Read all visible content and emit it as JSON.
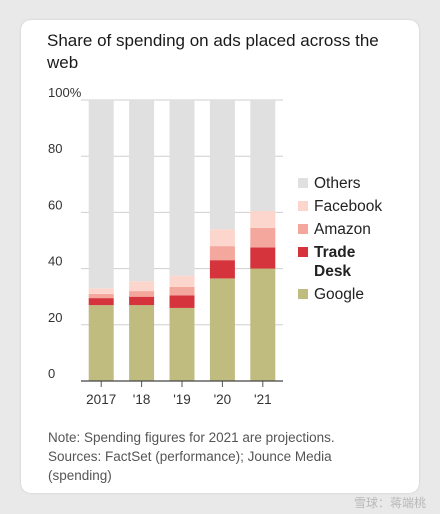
{
  "chart_data": {
    "type": "bar",
    "stacked": true,
    "title": "Share of spending on ads placed across the web",
    "categories": [
      "2017",
      "'18",
      "'19",
      "'20",
      "'21"
    ],
    "y_ticks": [
      "0",
      "20",
      "40",
      "60",
      "80",
      "100%"
    ],
    "ylim": [
      0,
      100
    ],
    "grid": true,
    "legend_position": "right",
    "series": [
      {
        "name": "Google",
        "color": "#c0bc80",
        "values": [
          27,
          27,
          26,
          36.5,
          40
        ]
      },
      {
        "name": "Trade Desk",
        "color": "#d6343c",
        "values": [
          2.5,
          3,
          4.5,
          6.5,
          7.5
        ]
      },
      {
        "name": "Amazon",
        "color": "#f4a79d",
        "values": [
          1.5,
          2,
          3,
          5,
          7
        ]
      },
      {
        "name": "Facebook",
        "color": "#fcd6cc",
        "values": [
          2,
          3.5,
          4,
          6,
          6
        ]
      },
      {
        "name": "Others",
        "color": "#e0e0e0",
        "values": [
          67,
          64.5,
          62.5,
          46,
          39.5
        ]
      }
    ],
    "legend": [
      {
        "name": "Others",
        "color": "#e0e0e0",
        "bold": false
      },
      {
        "name": "Facebook",
        "color": "#fcd6cc",
        "bold": false
      },
      {
        "name": "Amazon",
        "color": "#f4a79d",
        "bold": false
      },
      {
        "name": "Trade\nDesk",
        "color": "#d6343c",
        "bold": true
      },
      {
        "name": "Google",
        "color": "#c0bc80",
        "bold": false
      }
    ]
  },
  "note": {
    "line1": "Note: Spending figures for 2021 are projections.",
    "line2": "Sources: FactSet (performance); Jounce Media",
    "line3": "(spending)"
  },
  "watermark": "雪球：蒋端桃"
}
